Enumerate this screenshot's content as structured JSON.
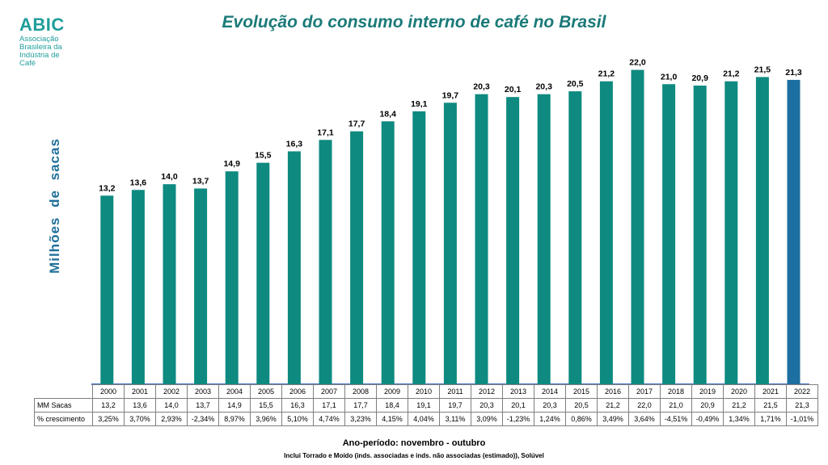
{
  "logo": {
    "mark": "ABIC",
    "text": "Associação Brasileira da Indústria de Café"
  },
  "chart_data": {
    "type": "bar",
    "title": "Evolução do consumo interno de café no Brasil",
    "ylabel": "Milhões de sacas",
    "xlabel": "Ano-período: novembro - outubro",
    "note": "Inclui Torrado e Moído (inds. associadas e inds. não associadas (estimado)), Solúvel",
    "categories": [
      "2000",
      "2001",
      "2002",
      "2003",
      "2004",
      "2005",
      "2006",
      "2007",
      "2008",
      "2009",
      "2010",
      "2011",
      "2012",
      "2013",
      "2014",
      "2015",
      "2016",
      "2017",
      "2018",
      "2019",
      "2020",
      "2021",
      "2022"
    ],
    "values": [
      13.2,
      13.6,
      14.0,
      13.7,
      14.9,
      15.5,
      16.3,
      17.1,
      17.7,
      18.4,
      19.1,
      19.7,
      20.3,
      20.1,
      20.3,
      20.5,
      21.2,
      22.0,
      21.0,
      20.9,
      21.2,
      21.5,
      21.3
    ],
    "value_labels": [
      "13,2",
      "13,6",
      "14,0",
      "13,7",
      "14,9",
      "15,5",
      "16,3",
      "17,1",
      "17,7",
      "18,4",
      "19,1",
      "19,7",
      "20,3",
      "20,1",
      "20,3",
      "20,5",
      "21,2",
      "22,0",
      "21,0",
      "20,9",
      "21,2",
      "21,5",
      "21,3"
    ],
    "ylim": [
      0,
      23.5
    ],
    "grid": false,
    "colors": {
      "bar": "#0e8a80",
      "highlight": "#1c6fa0",
      "axis": "#4472c4"
    },
    "highlight_index": 22,
    "table": {
      "rows": [
        {
          "label": "MM Sacas",
          "values": [
            "13,2",
            "13,6",
            "14,0",
            "13,7",
            "14,9",
            "15,5",
            "16,3",
            "17,1",
            "17,7",
            "18,4",
            "19,1",
            "19,7",
            "20,3",
            "20,1",
            "20,3",
            "20,5",
            "21,2",
            "22,0",
            "21,0",
            "20,9",
            "21,2",
            "21,5",
            "21,3"
          ]
        },
        {
          "label": "% crescimento",
          "values": [
            "3,25%",
            "3,70%",
            "2,93%",
            "-2,34%",
            "8,97%",
            "3,96%",
            "5,10%",
            "4,74%",
            "3,23%",
            "4,15%",
            "4,04%",
            "3,11%",
            "3,09%",
            "-1,23%",
            "1,24%",
            "0,86%",
            "3,49%",
            "3,64%",
            "-4,51%",
            "-0,49%",
            "1,34%",
            "1,71%",
            "-1,01%"
          ]
        }
      ]
    }
  }
}
